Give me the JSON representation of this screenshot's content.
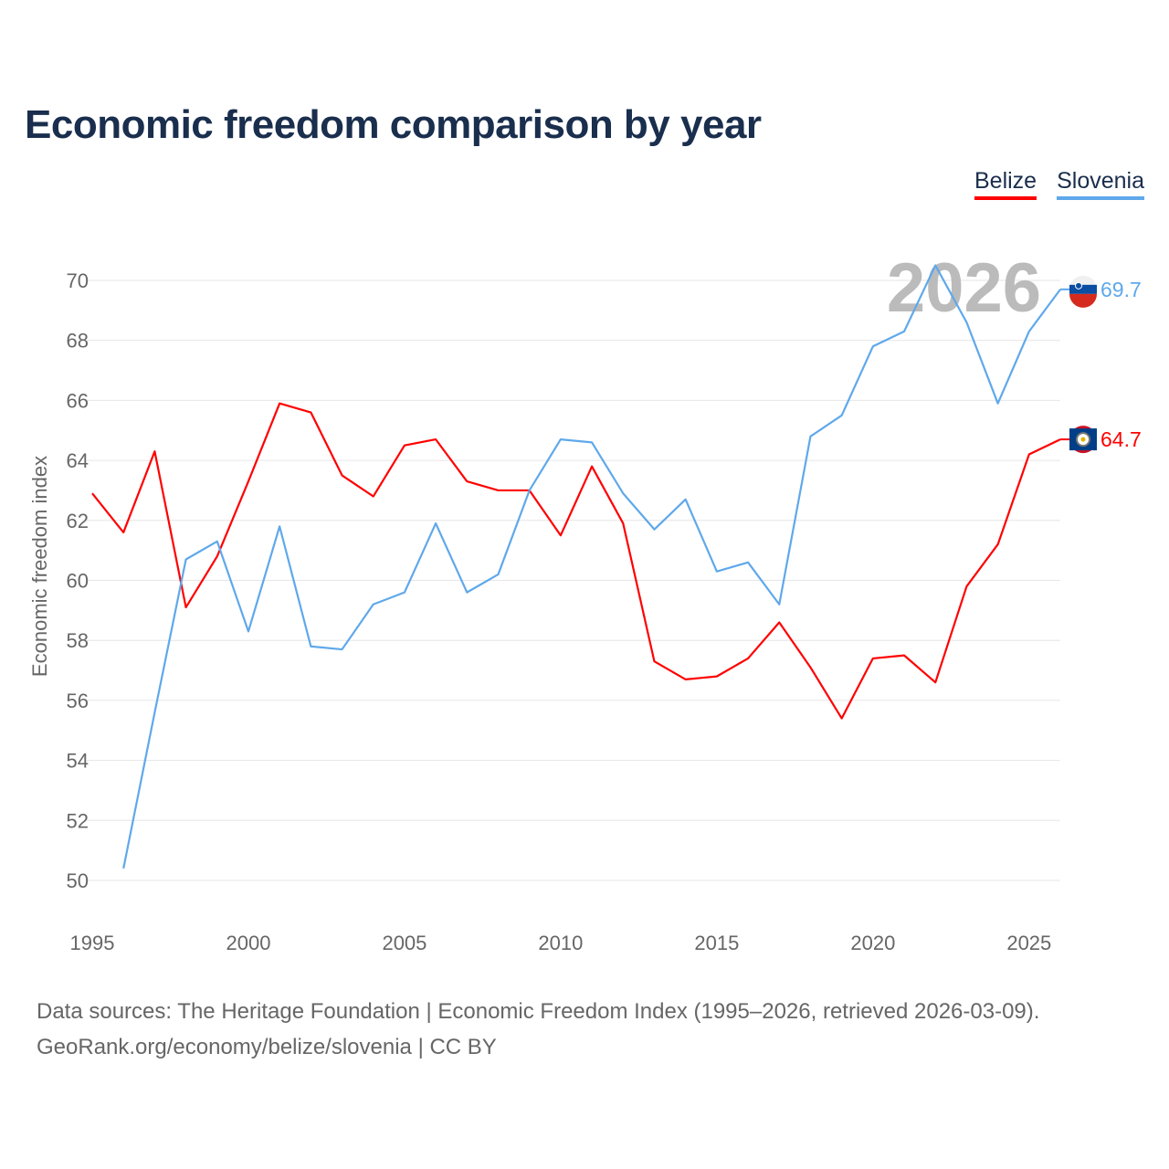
{
  "title": "Economic freedom comparison by year",
  "legend": [
    {
      "name": "Belize",
      "color": "#ff0000"
    },
    {
      "name": "Slovenia",
      "color": "#5fa8eb"
    }
  ],
  "watermark_year": "2026",
  "source_line1": "Data sources: The Heritage Foundation | Economic Freedom Index (1995–2026, retrieved 2026-03-09).",
  "source_line2": "GeoRank.org/economy/belize/slovenia | CC BY",
  "chart_data": {
    "type": "line",
    "title": "Economic freedom comparison by year",
    "xlabel": "",
    "ylabel": "Economic freedom index",
    "xlim": [
      1995,
      2026
    ],
    "ylim": [
      50,
      70
    ],
    "x_ticks": [
      1995,
      2000,
      2005,
      2010,
      2015,
      2020,
      2025
    ],
    "y_ticks": [
      50,
      52,
      54,
      56,
      58,
      60,
      62,
      64,
      66,
      68,
      70
    ],
    "grid": true,
    "legend_position": "top-right",
    "series": [
      {
        "name": "Belize",
        "color": "#ff0000",
        "end_label": "64.7",
        "flag": "belize-flag",
        "x": [
          1995,
          1996,
          1997,
          1998,
          1999,
          2000,
          2001,
          2002,
          2003,
          2004,
          2005,
          2006,
          2007,
          2008,
          2009,
          2010,
          2011,
          2012,
          2013,
          2014,
          2015,
          2016,
          2017,
          2018,
          2019,
          2020,
          2021,
          2022,
          2023,
          2024,
          2025,
          2026
        ],
        "values": [
          62.9,
          61.6,
          64.3,
          59.1,
          60.8,
          63.3,
          65.9,
          65.6,
          63.5,
          62.8,
          64.5,
          64.7,
          63.3,
          63.0,
          63.0,
          61.5,
          63.8,
          61.9,
          57.3,
          56.7,
          56.8,
          57.4,
          58.6,
          57.1,
          55.4,
          57.4,
          57.5,
          56.6,
          59.8,
          61.2,
          64.2,
          64.7
        ]
      },
      {
        "name": "Slovenia",
        "color": "#5fa8eb",
        "end_label": "69.7",
        "flag": "slovenia-flag",
        "x": [
          1996,
          1997,
          1998,
          1999,
          2000,
          2001,
          2002,
          2003,
          2004,
          2005,
          2006,
          2007,
          2008,
          2009,
          2010,
          2011,
          2012,
          2013,
          2014,
          2015,
          2016,
          2017,
          2018,
          2019,
          2020,
          2021,
          2022,
          2023,
          2024,
          2025,
          2026
        ],
        "values": [
          50.4,
          55.6,
          60.7,
          61.3,
          58.3,
          61.8,
          57.8,
          57.7,
          59.2,
          59.6,
          61.9,
          59.6,
          60.2,
          63.0,
          64.7,
          64.6,
          62.9,
          61.7,
          62.7,
          60.3,
          60.6,
          59.2,
          64.8,
          65.5,
          67.8,
          68.3,
          70.5,
          68.6,
          65.9,
          68.3,
          69.7
        ]
      }
    ]
  }
}
